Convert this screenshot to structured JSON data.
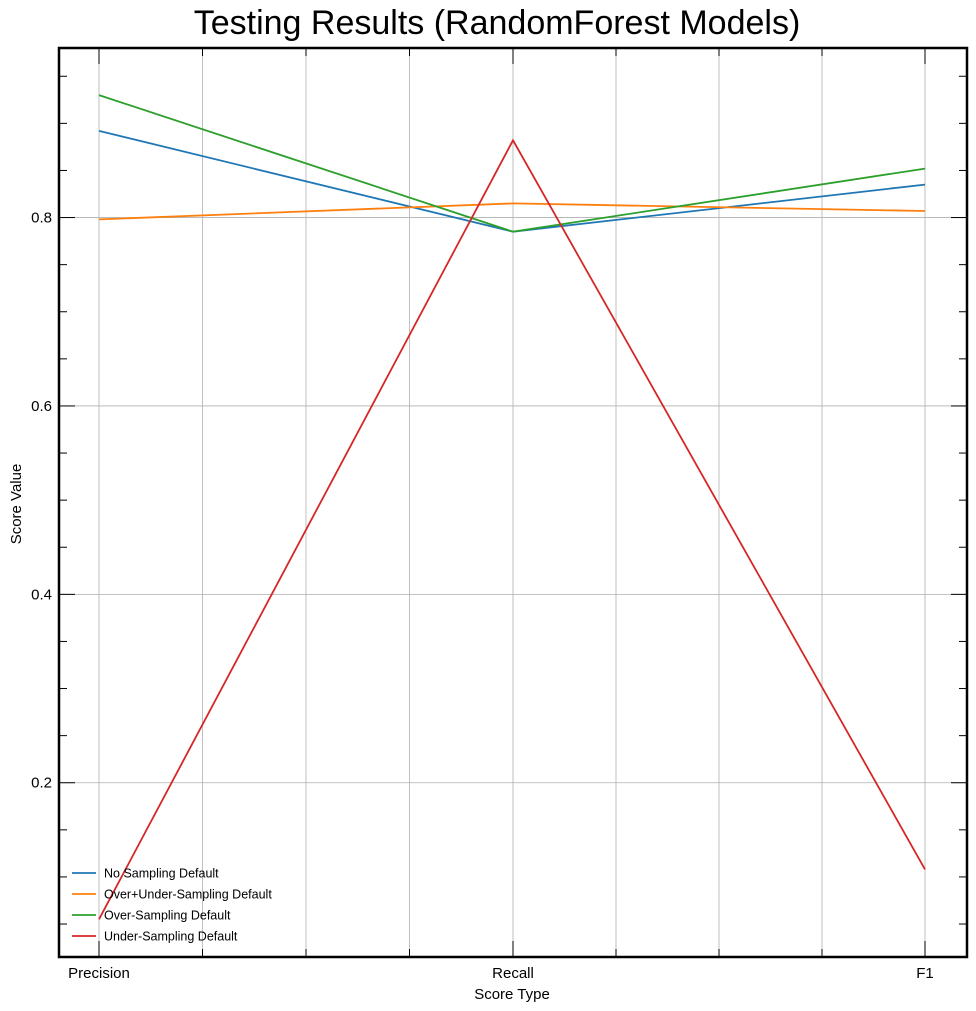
{
  "chart_data": {
    "type": "line",
    "title": "Testing Results (RandomForest Models)",
    "xlabel": "Score Type",
    "ylabel": "Score Value",
    "categories": [
      "Precision",
      "Recall",
      "F1"
    ],
    "ylim": [
      0.015,
      0.98
    ],
    "yticks": [
      0.2,
      0.4,
      0.6,
      0.8
    ],
    "ytick_labels": [
      "0.2",
      "0.4",
      "0.6",
      "0.8"
    ],
    "grid": true,
    "legend_position": "lower-left",
    "series": [
      {
        "name": "No Sampling Default",
        "color": "#1f77b4",
        "values": [
          0.892,
          0.785,
          0.835
        ]
      },
      {
        "name": "Over+Under-Sampling Default",
        "color": "#ff7f0e",
        "values": [
          0.798,
          0.815,
          0.807
        ]
      },
      {
        "name": "Over-Sampling Default",
        "color": "#2ca02c",
        "values": [
          0.93,
          0.785,
          0.852
        ]
      },
      {
        "name": "Under-Sampling Default",
        "color": "#d62728",
        "values": [
          0.055,
          0.882,
          0.108
        ]
      }
    ]
  }
}
